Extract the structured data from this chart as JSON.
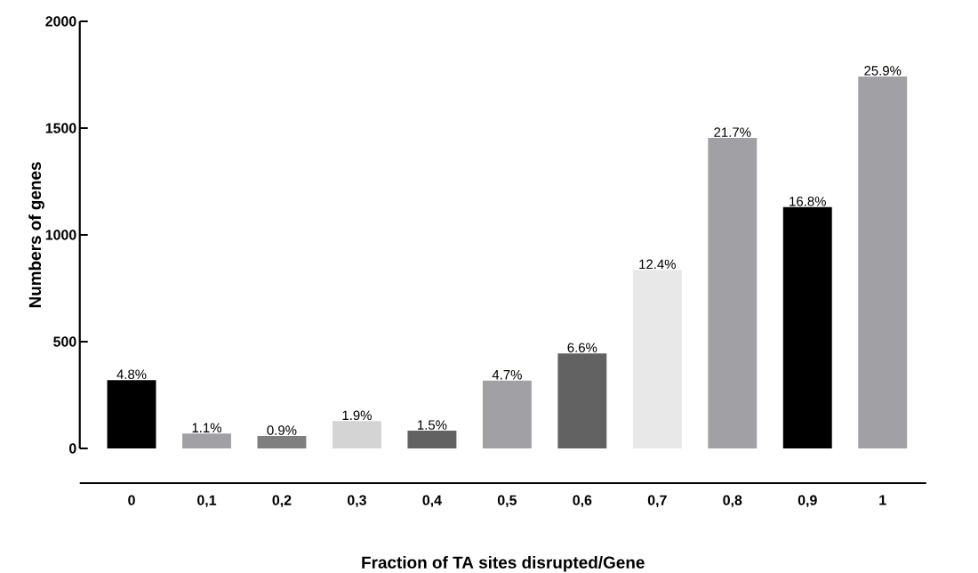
{
  "chart_data": {
    "type": "bar",
    "xlabel": "Fraction of TA sites disrupted/Gene",
    "ylabel": "Numbers of genes",
    "categories": [
      "0",
      "0,1",
      "0,2",
      "0,3",
      "0,4",
      "0,5",
      "0,6",
      "0,7",
      "0,8",
      "0,9",
      "1"
    ],
    "values": [
      320,
      70,
      58,
      128,
      83,
      318,
      445,
      836,
      1454,
      1130,
      1742
    ],
    "colors": [
      "#000000",
      "#a1a0a5",
      "#7f7f7f",
      "#d4d4d4",
      "#626262",
      "#a1a0a5",
      "#626262",
      "#e8e8e8",
      "#a1a0a5",
      "#000000",
      "#a1a0a5"
    ],
    "annotations": [
      {
        "text": "4.8%",
        "x": "0",
        "y": 320
      },
      {
        "text": "1.1%",
        "x": "0,1",
        "y": 70
      },
      {
        "text": "0.9%",
        "x": "0,2",
        "y": 58
      },
      {
        "text": "1.9%",
        "x": "0,3",
        "y": 128
      },
      {
        "text": "1.5%",
        "x": "0,4",
        "y": 83
      },
      {
        "text": "4.7%",
        "x": "0,5",
        "y": 318
      },
      {
        "text": "6.6%",
        "x": "0,6",
        "y": 445
      },
      {
        "text": "12.4%",
        "x": "0,7",
        "y": 836
      },
      {
        "text": "21.7%",
        "x": "0,8",
        "y": 1454
      },
      {
        "text": "16.8%",
        "x": "0,9",
        "y": 1130
      },
      {
        "text": "25.9%",
        "x": "1",
        "y": 1742
      }
    ],
    "ylim": [
      0,
      2000
    ],
    "yticks": [
      0,
      500,
      1000,
      1500,
      2000
    ],
    "grid": false
  }
}
